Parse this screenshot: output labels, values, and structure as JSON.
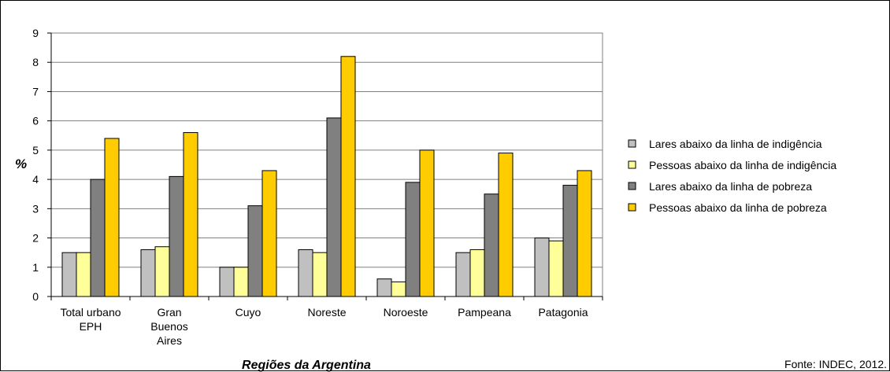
{
  "chart_data": {
    "type": "bar",
    "xlabel": "Regiões da Argentina",
    "ylabel": "%",
    "ylim": [
      0,
      9
    ],
    "yticks": [
      "0",
      "1",
      "2",
      "3",
      "4",
      "5",
      "6",
      "7",
      "8",
      "9"
    ],
    "grid": true,
    "legend_position": "right",
    "categories": [
      [
        "Total urbano",
        "EPH"
      ],
      [
        "Gran",
        "Buenos",
        "Aires"
      ],
      [
        "Cuyo"
      ],
      [
        "Noreste"
      ],
      [
        "Noroeste"
      ],
      [
        "Pampeana"
      ],
      [
        "Patagonia"
      ]
    ],
    "series": [
      {
        "name": "Lares abaixo da linha de indigência",
        "color": "#c0c0c0",
        "values": [
          1.5,
          1.6,
          1.0,
          1.6,
          0.6,
          1.5,
          2.0
        ]
      },
      {
        "name": "Pessoas abaixo da linha de indigência",
        "color": "#ffff99",
        "values": [
          1.5,
          1.7,
          1.0,
          1.5,
          0.5,
          1.6,
          1.9
        ]
      },
      {
        "name": "Lares abaixo da linha de pobreza",
        "color": "#808080",
        "values": [
          4.0,
          4.1,
          3.1,
          6.1,
          3.9,
          3.5,
          3.8
        ]
      },
      {
        "name": "Pessoas abaixo da linha de pobreza",
        "color": "#ffcc00",
        "values": [
          5.4,
          5.6,
          4.3,
          8.2,
          5.0,
          4.9,
          4.3
        ]
      }
    ],
    "source": "Fonte: INDEC, 2012."
  }
}
